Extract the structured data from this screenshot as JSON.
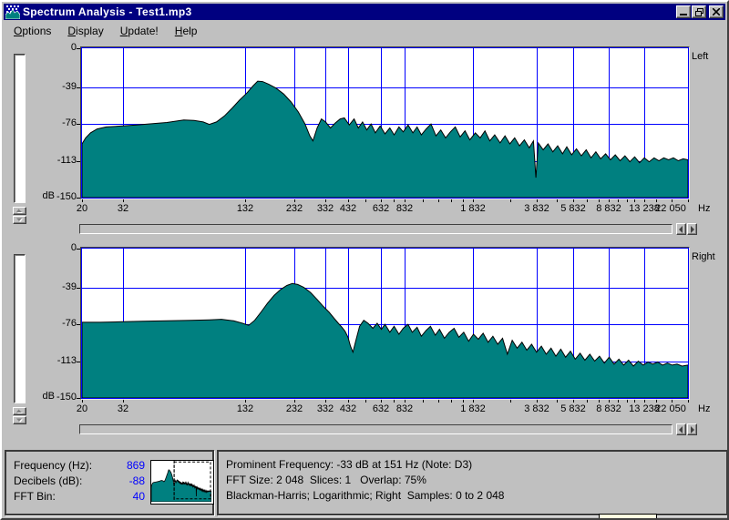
{
  "window": {
    "title": "Spectrum Analysis - Test1.mp3"
  },
  "titlebar_buttons": {
    "minimize": "minimize",
    "restore": "restore",
    "close": "close"
  },
  "menu": {
    "items": [
      {
        "label": "Options",
        "hotkey": "O"
      },
      {
        "label": "Display",
        "hotkey": "D"
      },
      {
        "label": "Update!",
        "hotkey": "U"
      },
      {
        "label": "Help",
        "hotkey": "H"
      }
    ]
  },
  "colors": {
    "spectrum_teal": "#008080",
    "grid_blue": "#0000FF",
    "title_navy": "#000080",
    "value_blue": "#0000FF",
    "background_silver": "#C0C0C0",
    "tooltip_yellow": "#FFFFE1"
  },
  "chart_data": [
    {
      "type": "area",
      "channel_label": "Left",
      "ylabel_unit": "dB",
      "x_unit": "Hz",
      "freq_min": 20,
      "freq_max": 22050,
      "db_min": -150,
      "db_max": 0,
      "x_scale": "logarithmic",
      "y_ticks": [
        {
          "db": 0,
          "label": "0",
          "grid": false
        },
        {
          "db": -39,
          "label": "-39",
          "grid": true
        },
        {
          "db": -76,
          "label": "-76",
          "grid": true
        },
        {
          "db": -113,
          "label": "-113",
          "grid": true
        },
        {
          "db": -150,
          "label": "-150",
          "grid": false
        }
      ],
      "x_ticks": [
        {
          "f": 20,
          "label": "20",
          "grid": false
        },
        {
          "f": 32,
          "label": "32",
          "grid": true
        },
        {
          "f": 132,
          "label": "132",
          "grid": true
        },
        {
          "f": 232,
          "label": "232",
          "grid": true
        },
        {
          "f": 332,
          "label": "332",
          "grid": true
        },
        {
          "f": 432,
          "label": "432",
          "grid": true
        },
        {
          "f": 632,
          "label": "632",
          "grid": true
        },
        {
          "f": 832,
          "label": "832",
          "grid": true
        },
        {
          "f": 1832,
          "label": "1 832",
          "grid": true
        },
        {
          "f": 3832,
          "label": "3 832",
          "grid": true
        },
        {
          "f": 5832,
          "label": "5 832",
          "grid": true
        },
        {
          "f": 8832,
          "label": "8 832",
          "grid": true
        },
        {
          "f": 13238,
          "label": "13 238",
          "grid": true
        },
        {
          "f": 22050,
          "label": "22 050",
          "grid": false
        }
      ],
      "minor_ticks": [
        532,
        732,
        1032,
        1232,
        1432,
        1632,
        2832,
        4832,
        6832,
        7832,
        9832,
        10832,
        11832,
        15238,
        18238
      ],
      "series": [
        [
          0,
          -96
        ],
        [
          0.006,
          -90
        ],
        [
          0.014,
          -85
        ],
        [
          0.025,
          -81
        ],
        [
          0.04,
          -79
        ],
        [
          0.067,
          -78
        ],
        [
          0.09,
          -77
        ],
        [
          0.11,
          -76
        ],
        [
          0.14,
          -74.5
        ],
        [
          0.168,
          -72
        ],
        [
          0.185,
          -72.5
        ],
        [
          0.2,
          -74
        ],
        [
          0.21,
          -76.5
        ],
        [
          0.222,
          -74
        ],
        [
          0.235,
          -68
        ],
        [
          0.248,
          -60
        ],
        [
          0.26,
          -52
        ],
        [
          0.272,
          -45
        ],
        [
          0.282,
          -38
        ],
        [
          0.29,
          -33
        ],
        [
          0.298,
          -33.5
        ],
        [
          0.308,
          -36
        ],
        [
          0.32,
          -40
        ],
        [
          0.333,
          -46
        ],
        [
          0.345,
          -54
        ],
        [
          0.357,
          -64
        ],
        [
          0.368,
          -76
        ],
        [
          0.376,
          -88
        ],
        [
          0.381,
          -93
        ],
        [
          0.388,
          -80
        ],
        [
          0.395,
          -71
        ],
        [
          0.402,
          -74
        ],
        [
          0.41,
          -80
        ],
        [
          0.418,
          -75
        ],
        [
          0.426,
          -71
        ],
        [
          0.433,
          -70
        ],
        [
          0.441,
          -77
        ],
        [
          0.449,
          -71
        ],
        [
          0.456,
          -80
        ],
        [
          0.463,
          -74
        ],
        [
          0.47,
          -82
        ],
        [
          0.477,
          -76
        ],
        [
          0.484,
          -85
        ],
        [
          0.492,
          -78
        ],
        [
          0.5,
          -86
        ],
        [
          0.508,
          -80
        ],
        [
          0.515,
          -87
        ],
        [
          0.523,
          -79
        ],
        [
          0.53,
          -84
        ],
        [
          0.538,
          -77
        ],
        [
          0.546,
          -85
        ],
        [
          0.553,
          -79
        ],
        [
          0.56,
          -87
        ],
        [
          0.568,
          -81
        ],
        [
          0.576,
          -76
        ],
        [
          0.584,
          -88
        ],
        [
          0.592,
          -82
        ],
        [
          0.6,
          -90
        ],
        [
          0.608,
          -84
        ],
        [
          0.616,
          -79
        ],
        [
          0.624,
          -89
        ],
        [
          0.632,
          -83
        ],
        [
          0.64,
          -92
        ],
        [
          0.649,
          -85
        ],
        [
          0.657,
          -90
        ],
        [
          0.665,
          -83
        ],
        [
          0.673,
          -93
        ],
        [
          0.681,
          -87
        ],
        [
          0.69,
          -95
        ],
        [
          0.698,
          -88
        ],
        [
          0.706,
          -96
        ],
        [
          0.714,
          -90
        ],
        [
          0.722,
          -98
        ],
        [
          0.73,
          -92
        ],
        [
          0.738,
          -100
        ],
        [
          0.745,
          -93
        ],
        [
          0.749,
          -130
        ],
        [
          0.753,
          -95
        ],
        [
          0.761,
          -102
        ],
        [
          0.769,
          -96
        ],
        [
          0.777,
          -104
        ],
        [
          0.785,
          -98
        ],
        [
          0.793,
          -106
        ],
        [
          0.8,
          -99
        ],
        [
          0.808,
          -107
        ],
        [
          0.816,
          -101
        ],
        [
          0.824,
          -108
        ],
        [
          0.832,
          -102
        ],
        [
          0.84,
          -110
        ],
        [
          0.848,
          -104
        ],
        [
          0.856,
          -111
        ],
        [
          0.864,
          -106
        ],
        [
          0.872,
          -112
        ],
        [
          0.88,
          -107
        ],
        [
          0.888,
          -113
        ],
        [
          0.896,
          -108
        ],
        [
          0.904,
          -114
        ],
        [
          0.912,
          -109
        ],
        [
          0.92,
          -115
        ],
        [
          0.928,
          -110
        ],
        [
          0.936,
          -114
        ],
        [
          0.944,
          -110
        ],
        [
          0.952,
          -113
        ],
        [
          0.96,
          -110
        ],
        [
          0.968,
          -112
        ],
        [
          0.976,
          -110
        ],
        [
          0.984,
          -113
        ],
        [
          0.992,
          -111
        ],
        [
          1,
          -112
        ]
      ]
    },
    {
      "type": "area",
      "channel_label": "Right",
      "ylabel_unit": "dB",
      "x_unit": "Hz",
      "freq_min": 20,
      "freq_max": 22050,
      "db_min": -150,
      "db_max": 0,
      "x_scale": "logarithmic",
      "y_ticks": [
        {
          "db": 0,
          "label": "0",
          "grid": false
        },
        {
          "db": -39,
          "label": "-39",
          "grid": true
        },
        {
          "db": -76,
          "label": "-76",
          "grid": true
        },
        {
          "db": -113,
          "label": "-113",
          "grid": true
        },
        {
          "db": -150,
          "label": "-150",
          "grid": false
        }
      ],
      "x_ticks": [
        {
          "f": 20,
          "label": "20",
          "grid": false
        },
        {
          "f": 32,
          "label": "32",
          "grid": true
        },
        {
          "f": 132,
          "label": "132",
          "grid": true
        },
        {
          "f": 232,
          "label": "232",
          "grid": true
        },
        {
          "f": 332,
          "label": "332",
          "grid": true
        },
        {
          "f": 432,
          "label": "432",
          "grid": true
        },
        {
          "f": 632,
          "label": "632",
          "grid": true
        },
        {
          "f": 832,
          "label": "832",
          "grid": true
        },
        {
          "f": 1832,
          "label": "1 832",
          "grid": true
        },
        {
          "f": 3832,
          "label": "3 832",
          "grid": true
        },
        {
          "f": 5832,
          "label": "5 832",
          "grid": true
        },
        {
          "f": 8832,
          "label": "8 832",
          "grid": true
        },
        {
          "f": 13238,
          "label": "13 238",
          "grid": true
        },
        {
          "f": 22050,
          "label": "22 050",
          "grid": false
        }
      ],
      "minor_ticks": [
        532,
        732,
        1032,
        1232,
        1432,
        1632,
        2832,
        4832,
        6832,
        7832,
        9832,
        10832,
        11832,
        15238,
        18238
      ],
      "series": [
        [
          0,
          -74
        ],
        [
          0.03,
          -74
        ],
        [
          0.06,
          -73.5
        ],
        [
          0.1,
          -73
        ],
        [
          0.14,
          -72.5
        ],
        [
          0.18,
          -72
        ],
        [
          0.21,
          -71.5
        ],
        [
          0.23,
          -71
        ],
        [
          0.25,
          -72.5
        ],
        [
          0.265,
          -75
        ],
        [
          0.275,
          -77
        ],
        [
          0.285,
          -72
        ],
        [
          0.295,
          -64
        ],
        [
          0.306,
          -55
        ],
        [
          0.317,
          -47
        ],
        [
          0.328,
          -41
        ],
        [
          0.338,
          -37
        ],
        [
          0.347,
          -35
        ],
        [
          0.356,
          -36
        ],
        [
          0.366,
          -39
        ],
        [
          0.377,
          -44
        ],
        [
          0.388,
          -51
        ],
        [
          0.398,
          -58
        ],
        [
          0.408,
          -64
        ],
        [
          0.416,
          -70
        ],
        [
          0.423,
          -75
        ],
        [
          0.429,
          -79
        ],
        [
          0.434,
          -83
        ],
        [
          0.439,
          -89
        ],
        [
          0.443,
          -98
        ],
        [
          0.447,
          -104
        ],
        [
          0.452,
          -92
        ],
        [
          0.458,
          -78
        ],
        [
          0.465,
          -72
        ],
        [
          0.472,
          -75
        ],
        [
          0.48,
          -80
        ],
        [
          0.487,
          -75
        ],
        [
          0.494,
          -81
        ],
        [
          0.5,
          -76
        ],
        [
          0.508,
          -84
        ],
        [
          0.515,
          -78
        ],
        [
          0.523,
          -86
        ],
        [
          0.53,
          -80
        ],
        [
          0.538,
          -76
        ],
        [
          0.545,
          -84
        ],
        [
          0.553,
          -79
        ],
        [
          0.56,
          -88
        ],
        [
          0.568,
          -82
        ],
        [
          0.575,
          -78
        ],
        [
          0.583,
          -87
        ],
        [
          0.59,
          -81
        ],
        [
          0.598,
          -90
        ],
        [
          0.606,
          -84
        ],
        [
          0.614,
          -80
        ],
        [
          0.622,
          -89
        ],
        [
          0.63,
          -84
        ],
        [
          0.638,
          -93
        ],
        [
          0.646,
          -86
        ],
        [
          0.654,
          -91
        ],
        [
          0.662,
          -85
        ],
        [
          0.67,
          -94
        ],
        [
          0.678,
          -88
        ],
        [
          0.686,
          -96
        ],
        [
          0.694,
          -90
        ],
        [
          0.702,
          -106
        ],
        [
          0.71,
          -92
        ],
        [
          0.718,
          -100
        ],
        [
          0.726,
          -94
        ],
        [
          0.734,
          -102
        ],
        [
          0.742,
          -96
        ],
        [
          0.75,
          -104
        ],
        [
          0.758,
          -98
        ],
        [
          0.766,
          -106
        ],
        [
          0.774,
          -100
        ],
        [
          0.782,
          -108
        ],
        [
          0.79,
          -101
        ],
        [
          0.798,
          -109
        ],
        [
          0.806,
          -103
        ],
        [
          0.814,
          -111
        ],
        [
          0.822,
          -105
        ],
        [
          0.83,
          -112
        ],
        [
          0.838,
          -106
        ],
        [
          0.846,
          -113
        ],
        [
          0.854,
          -108
        ],
        [
          0.862,
          -115
        ],
        [
          0.87,
          -109
        ],
        [
          0.878,
          -116
        ],
        [
          0.886,
          -111
        ],
        [
          0.894,
          -117
        ],
        [
          0.902,
          -112
        ],
        [
          0.91,
          -118
        ],
        [
          0.918,
          -113
        ],
        [
          0.926,
          -117
        ],
        [
          0.934,
          -114
        ],
        [
          0.942,
          -116
        ],
        [
          0.95,
          -114
        ],
        [
          0.958,
          -117
        ],
        [
          0.966,
          -115
        ],
        [
          0.974,
          -117
        ],
        [
          0.982,
          -116
        ],
        [
          0.99,
          -118
        ],
        [
          1,
          -117
        ]
      ]
    }
  ],
  "status_left": {
    "rows": [
      {
        "label": "Frequency (Hz):",
        "value": "869"
      },
      {
        "label": "Decibels (dB):",
        "value": "-88"
      },
      {
        "label": "FFT Bin:",
        "value": "40"
      }
    ],
    "thumbnail": {
      "cursor_t": 0.38,
      "sel_x0": 0.38,
      "sel_x1": 0.985,
      "sel_y0": 0.03,
      "sel_y1": 0.93
    }
  },
  "status_right": {
    "lines": [
      "Prominent Frequency: -33 dB at 151 Hz (Note: D3)",
      "FFT Size: 2 048  Slices: 1   Overlap: 75%",
      "Blackman-Harris; Logarithmic; Right  Samples: 0 to 2 048"
    ]
  }
}
